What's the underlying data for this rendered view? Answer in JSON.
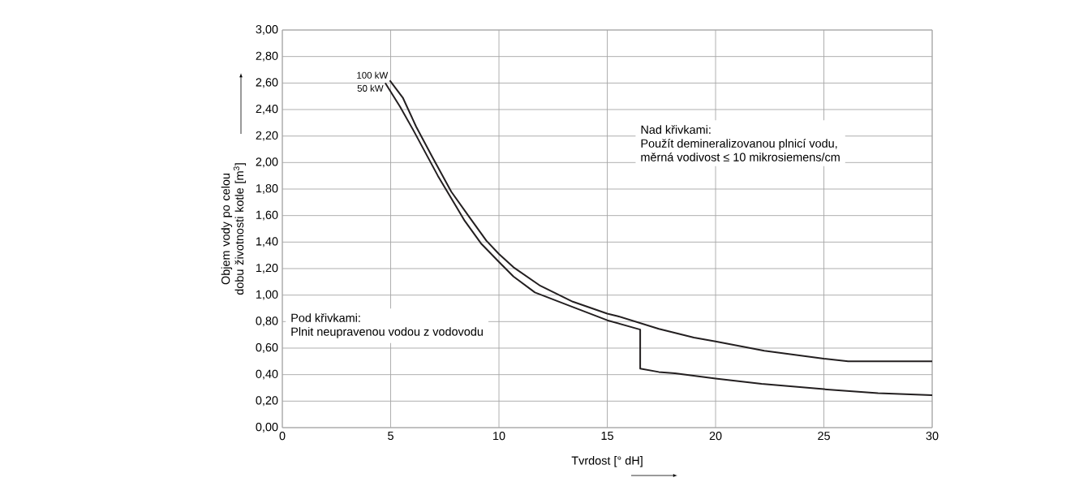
{
  "chart_data": {
    "type": "line",
    "xlabel": "Tvrdost [° dH]",
    "ylabel": "Objem vody po celou dobu životnosti kotle [m$^{3}$]",
    "xlim": [
      0,
      30
    ],
    "xticks": [
      0,
      5,
      10,
      15,
      20,
      25,
      30
    ],
    "ylim": [
      0,
      3
    ],
    "yticks": [
      {
        "value": 0,
        "label": "0,00"
      },
      {
        "value": 0.2,
        "label": "0,20"
      },
      {
        "value": 0.4,
        "label": "0,40"
      },
      {
        "value": 0.6,
        "label": "0,60"
      },
      {
        "value": 0.8,
        "label": "0,80"
      },
      {
        "value": 1.0,
        "label": "1,00"
      },
      {
        "value": 1.2,
        "label": "1,20"
      },
      {
        "value": 1.4,
        "label": "1,40"
      },
      {
        "value": 1.6,
        "label": "1,60"
      },
      {
        "value": 1.8,
        "label": "1,80"
      },
      {
        "value": 2.0,
        "label": "2,00"
      },
      {
        "value": 2.2,
        "label": "2,20"
      },
      {
        "value": 2.4,
        "label": "2,40"
      },
      {
        "value": 2.6,
        "label": "2,60"
      },
      {
        "value": 2.8,
        "label": "2,80"
      },
      {
        "value": 3.0,
        "label": "3,00"
      }
    ],
    "grid": true,
    "marker": "none",
    "line_style": "solid",
    "series": [
      {
        "name": "100 kW",
        "color": "#231f20",
        "x": [
          4.96,
          5.56,
          6.18,
          6.93,
          7.8,
          8.67,
          9.42,
          10.0,
          10.67,
          11.91,
          13.41,
          15.0,
          15.5,
          17.38,
          19.0,
          20.0,
          22.25,
          25.0,
          26.12,
          30.0
        ],
        "values": [
          2.62,
          2.49,
          2.27,
          2.04,
          1.78,
          1.58,
          1.41,
          1.31,
          1.21,
          1.07,
          0.95,
          0.86,
          0.84,
          0.745,
          0.68,
          0.65,
          0.58,
          0.52,
          0.5,
          0.5
        ]
      },
      {
        "name": "50 kW",
        "color": "#231f20",
        "x": [
          4.75,
          5.44,
          6.06,
          7.18,
          8.42,
          9.17,
          10.0,
          10.67,
          11.66,
          13.41,
          15.0,
          16.52,
          16.52,
          17.38,
          18.12,
          20.0,
          22.12,
          25.0,
          27.5,
          30.0
        ],
        "values": [
          2.6,
          2.42,
          2.24,
          1.9,
          1.56,
          1.39,
          1.25,
          1.14,
          1.02,
          0.91,
          0.81,
          0.74,
          0.445,
          0.42,
          0.41,
          0.37,
          0.33,
          0.29,
          0.26,
          0.245
        ]
      }
    ],
    "annotations": [
      "Nad křivkami:",
      "Použít demineralizovanou plnicí vodu,",
      "měrná vodivost ≤ 10 mikrosiemens/cm",
      "Pod křivkami:",
      "Plnit neupravenou vodou z vodovodu"
    ]
  }
}
